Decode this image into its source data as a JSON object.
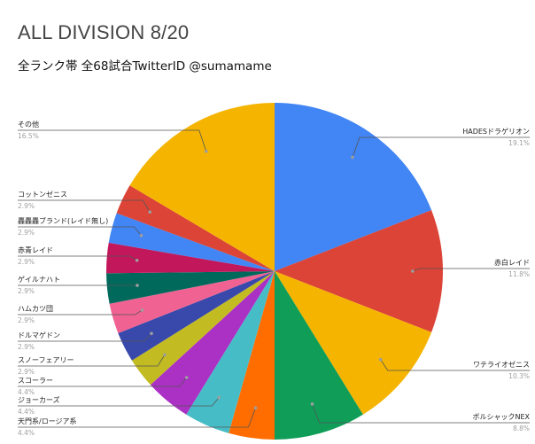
{
  "chart_data": {
    "type": "pie",
    "title": "ALL DIVISION 8/20",
    "subtitle": "全ランク帯 全68試合TwitterID @sumamame",
    "slices": [
      {
        "label": "HADESドラゲリオン",
        "value": 19.1,
        "pct_text": "19.1%",
        "color": "#4285f4"
      },
      {
        "label": "赤白レイド",
        "value": 11.8,
        "pct_text": "11.8%",
        "color": "#db4437"
      },
      {
        "label": "ワテライオゼニス",
        "value": 10.3,
        "pct_text": "10.3%",
        "color": "#f4b400"
      },
      {
        "label": "ボルシャックNEX",
        "value": 8.8,
        "pct_text": "8.8%",
        "color": "#0f9d58"
      },
      {
        "label": "天門系/ロージア系",
        "value": 4.4,
        "pct_text": "4.4%",
        "color": "#ff6d01"
      },
      {
        "label": "ジョーカーズ",
        "value": 4.4,
        "pct_text": "4.4%",
        "color": "#46bdc6"
      },
      {
        "label": "スコーラー",
        "value": 4.4,
        "pct_text": "4.4%",
        "color": "#ab30c4"
      },
      {
        "label": "スノーフェアリー",
        "value": 2.9,
        "pct_text": "2.9%",
        "color": "#c2bb22"
      },
      {
        "label": "ドルマゲドン",
        "value": 2.9,
        "pct_text": "2.9%",
        "color": "#3949ab"
      },
      {
        "label": "ハムカツ団",
        "value": 2.9,
        "pct_text": "2.9%",
        "color": "#f06292"
      },
      {
        "label": "ゲイルナハト",
        "value": 2.9,
        "pct_text": "2.9%",
        "color": "#00695c"
      },
      {
        "label": "赤青レイド",
        "value": 2.9,
        "pct_text": "2.9%",
        "color": "#c2185b"
      },
      {
        "label": "轟轟轟ブランド(レイド無し)",
        "value": 2.9,
        "pct_text": "2.9%",
        "color": "#4285f4"
      },
      {
        "label": "コットンゼニス",
        "value": 2.9,
        "pct_text": "2.9%",
        "color": "#db4437"
      },
      {
        "label": "その他",
        "value": 16.5,
        "pct_text": "16.5%",
        "color": "#f4b400"
      }
    ]
  }
}
